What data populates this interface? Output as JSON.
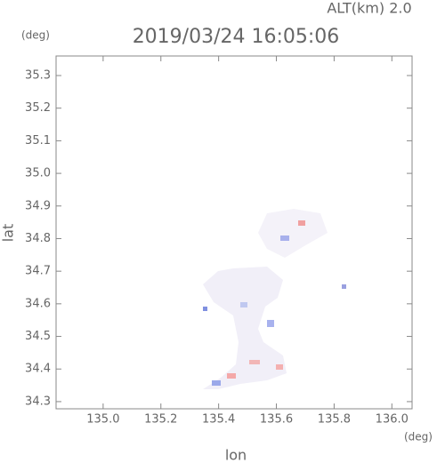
{
  "chart_data": {
    "type": "map",
    "title": "2019/03/24 16:05:06",
    "altitude_label": "ALT(km)  2.0",
    "y_unit": "(deg)",
    "x_unit": "(deg)",
    "xlabel": "lon",
    "ylabel": "lat",
    "xlim": [
      134.837,
      136.07
    ],
    "ylim": [
      34.278,
      35.36
    ],
    "xticks": [
      {
        "value": 135.0,
        "label": "135.0"
      },
      135.2,
      135.4,
      135.6,
      135.8,
      {
        "value": 136.0,
        "label": "136.0"
      }
    ],
    "yticks": [
      34.3,
      34.4,
      34.5,
      34.6,
      34.7,
      34.8,
      34.9,
      {
        "value": 35.0,
        "label": "35.0"
      },
      35.1,
      35.2,
      35.3
    ]
  }
}
